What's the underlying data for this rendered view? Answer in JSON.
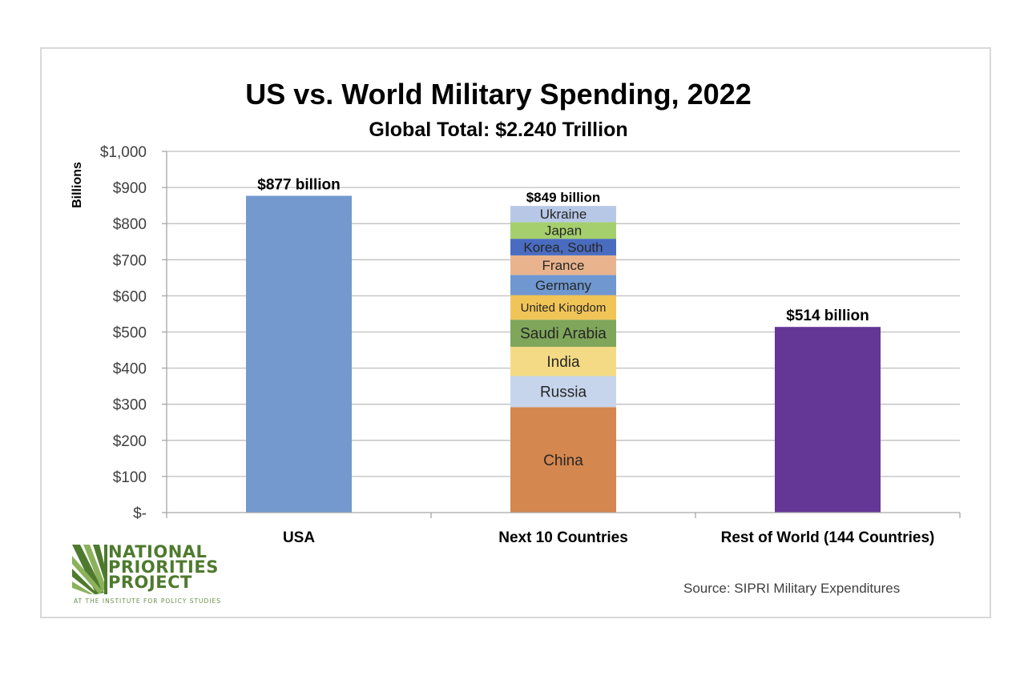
{
  "chart_data": {
    "type": "bar",
    "stacked": true,
    "title": "US vs. World Military Spending, 2022",
    "subtitle": "Global Total: $2.240 Trillion",
    "ylabel": "Billions",
    "xlabel": "",
    "ylim": [
      0,
      1000
    ],
    "yticks": [
      0,
      100,
      200,
      300,
      400,
      500,
      600,
      700,
      800,
      900,
      1000
    ],
    "ytick_labels": [
      "$-",
      "$100",
      "$200",
      "$300",
      "$400",
      "$500",
      "$600",
      "$700",
      "$800",
      "$900",
      "$1,000"
    ],
    "grid": true,
    "categories": [
      "USA",
      "Next 10 Countries",
      "Rest of World (144 Countries)"
    ],
    "bars": [
      {
        "category": "USA",
        "total_label": "$877 billion",
        "segments": [
          {
            "name": "USA",
            "value": 877,
            "color": "#7399cf",
            "show_label": false
          }
        ]
      },
      {
        "category": "Next 10 Countries",
        "total_label": "$849 billion",
        "segments": [
          {
            "name": "China",
            "value": 292,
            "color": "#d4874f",
            "show_label": true
          },
          {
            "name": "Russia",
            "value": 86,
            "color": "#c6d5ec",
            "show_label": true
          },
          {
            "name": "India",
            "value": 81,
            "color": "#f4da84",
            "show_label": true
          },
          {
            "name": "Saudi Arabia",
            "value": 75,
            "color": "#7fa65a",
            "show_label": true
          },
          {
            "name": "United Kingdom",
            "value": 68,
            "color": "#f1c457",
            "show_label": true
          },
          {
            "name": "Germany",
            "value": 56,
            "color": "#6f97d0",
            "show_label": true
          },
          {
            "name": "France",
            "value": 54,
            "color": "#e9b48d",
            "show_label": true
          },
          {
            "name": "Korea, South",
            "value": 46,
            "color": "#4a6cc0",
            "show_label": true
          },
          {
            "name": "Japan",
            "value": 46,
            "color": "#a5cf6c",
            "show_label": true
          },
          {
            "name": "Ukraine",
            "value": 45,
            "color": "#b7c8e6",
            "show_label": true
          }
        ]
      },
      {
        "category": "Rest of World (144 Countries)",
        "total_label": "$514 billion",
        "segments": [
          {
            "name": "Rest of World",
            "value": 514,
            "color": "#643695",
            "show_label": false
          }
        ]
      }
    ],
    "source": "Source: SIPRI Military Expenditures"
  },
  "logo": {
    "line1": "NATIONAL",
    "line2": "PRIORITIES",
    "line3": "PROJECT",
    "tagline": "AT THE INSTITUTE FOR POLICY STUDIES"
  },
  "colors": {
    "grid": "#bfbfbf",
    "axis": "#a6a6a6",
    "text": "#000000",
    "tick_text": "#404040",
    "logo_green": "#4e7a2e"
  }
}
